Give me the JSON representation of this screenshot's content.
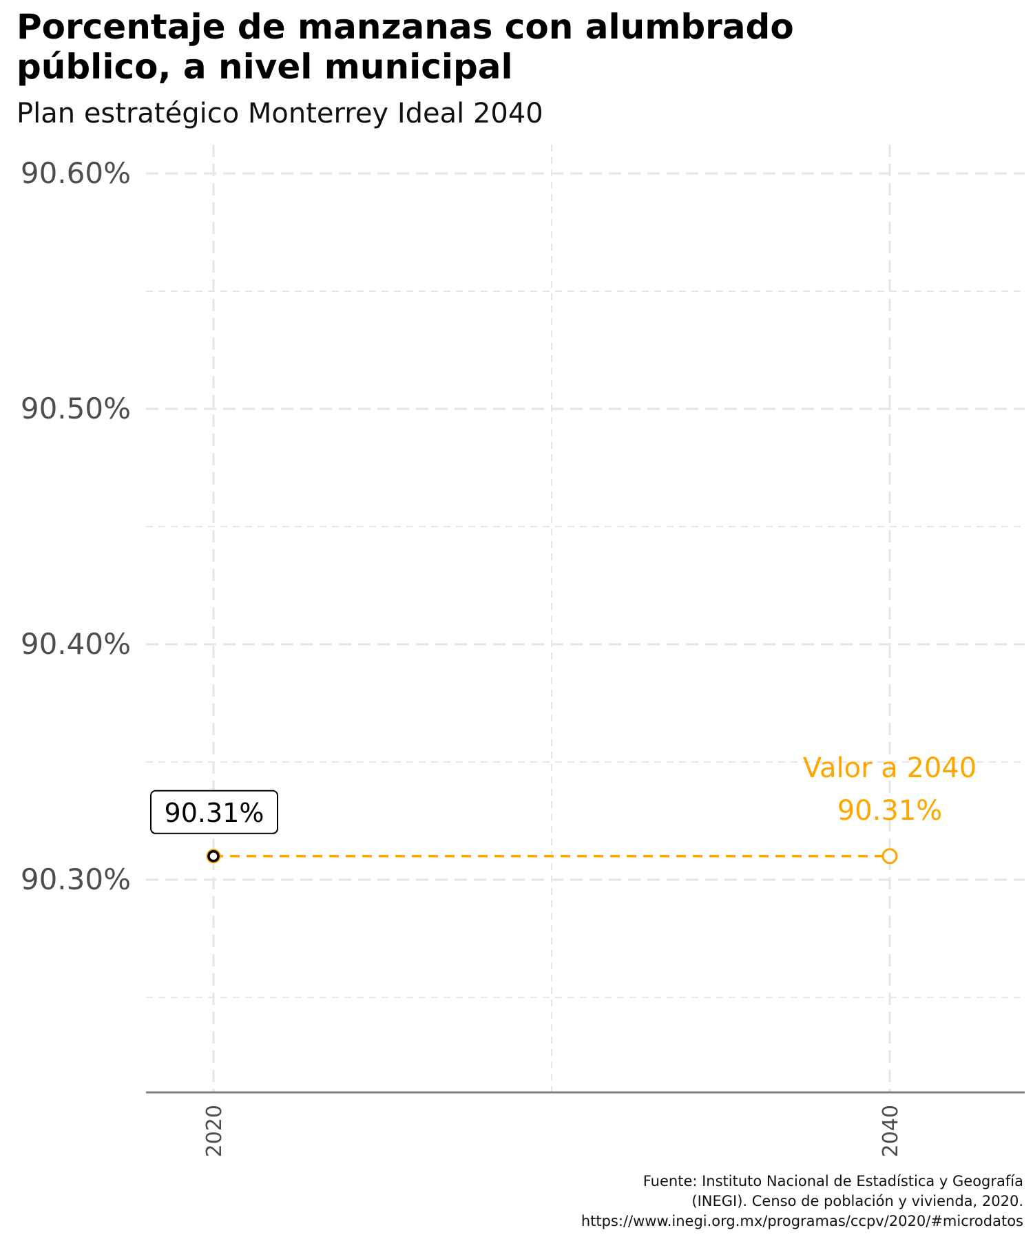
{
  "chart_data": {
    "type": "line",
    "title": "Porcentaje de manzanas con alumbrado público, a nivel municipal",
    "subtitle": "Plan estratégico Monterrey Ideal 2040",
    "xlabel": "",
    "ylabel": "",
    "x": [
      2020,
      2040
    ],
    "x_tick_labels": [
      "2020",
      "2040"
    ],
    "ylim": [
      90.21,
      90.61
    ],
    "y_ticks": [
      90.3,
      90.4,
      90.5,
      90.6
    ],
    "y_tick_labels": [
      "90.30%",
      "90.40%",
      "90.50%",
      "90.60%"
    ],
    "grid": true,
    "series": [
      {
        "values": [
          90.31,
          90.31
        ],
        "color": "#ffa500",
        "style": "dashed"
      }
    ],
    "observed_point": {
      "x": 2020,
      "y": 90.31,
      "label": "90.31%"
    },
    "target_point": {
      "x": 2040,
      "y": 90.31,
      "label_title": "Valor a 2040",
      "label_value": "90.31%",
      "color": "#ffa500"
    },
    "caption": [
      "Fuente: Instituto Nacional de Estadística y Geografía",
      "(INEGI). Censo de población y vivienda, 2020.",
      "https://www.inegi.org.mx/programas/ccpv/2020/#microdatos"
    ]
  },
  "colors": {
    "accent": "#ffa500",
    "grid": "#e6e6e6",
    "axis": "#7f7f7f",
    "tick_text": "#4d4d4d"
  }
}
